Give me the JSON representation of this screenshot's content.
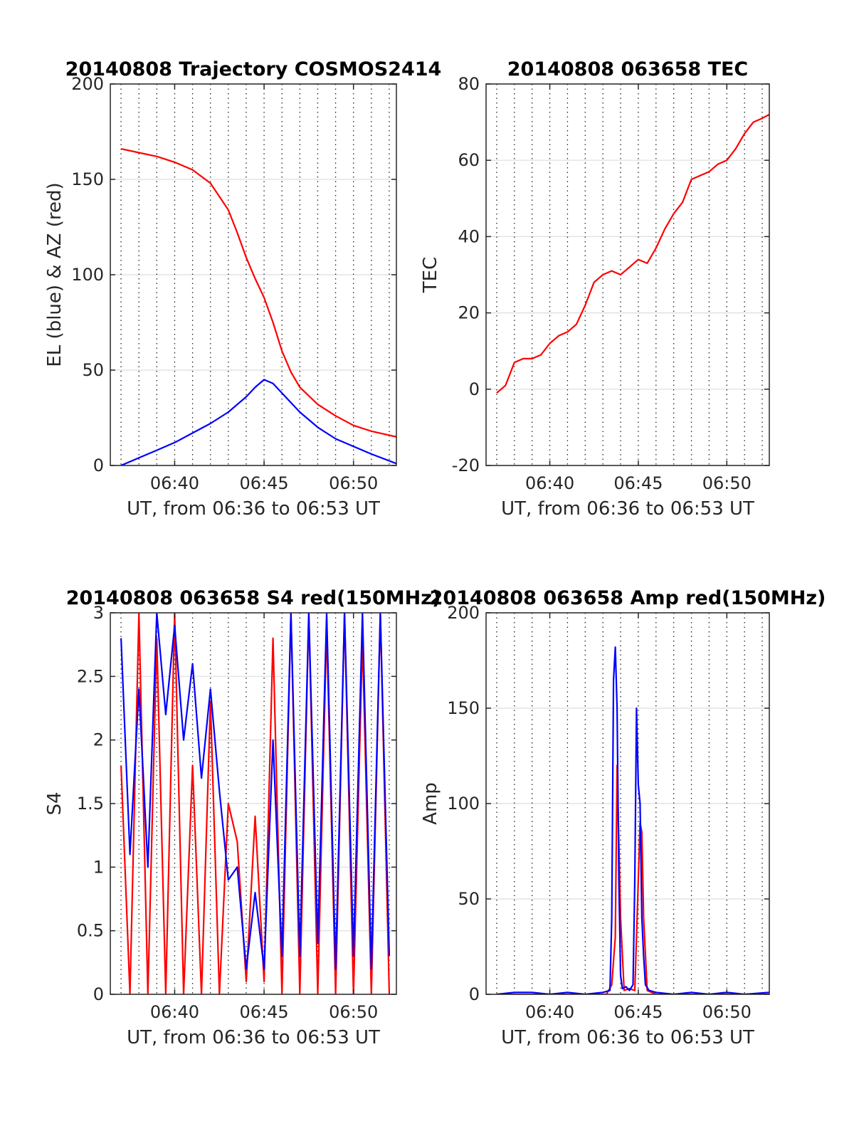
{
  "chart_data": [
    {
      "type": "line",
      "title": "20140808 Trajectory COSMOS2414",
      "xlabel": "UT, from 06:36 to 06:53 UT",
      "ylabel": "EL (blue) & AZ (red)",
      "xlim": [
        6.4,
        22.4
      ],
      "ylim": [
        0,
        200
      ],
      "xticks": [
        {
          "v": 10,
          "label": "06:40"
        },
        {
          "v": 15,
          "label": "06:45"
        },
        {
          "v": 20,
          "label": "06:50"
        }
      ],
      "yticks": [
        {
          "v": 0,
          "label": "0"
        },
        {
          "v": 50,
          "label": "50"
        },
        {
          "v": 100,
          "label": "100"
        },
        {
          "v": 150,
          "label": "150"
        },
        {
          "v": 200,
          "label": "200"
        }
      ],
      "series": [
        {
          "color": "#ff0000",
          "x": [
            7,
            8,
            9,
            10,
            11,
            12,
            13,
            13.5,
            14,
            14.5,
            15,
            15.5,
            16,
            16.5,
            17,
            18,
            19,
            20,
            21,
            22.4
          ],
          "y": [
            166,
            164,
            162,
            159,
            155,
            148,
            134,
            122,
            109,
            98,
            88,
            75,
            60,
            49,
            41,
            32,
            26,
            21,
            18,
            15
          ]
        },
        {
          "color": "#0000ff",
          "x": [
            7,
            8,
            9,
            10,
            11,
            12,
            13,
            14,
            14.5,
            15,
            15.5,
            16,
            17,
            18,
            19,
            20,
            21,
            22.4
          ],
          "y": [
            0,
            4,
            8,
            12,
            17,
            22,
            28,
            36,
            41,
            45,
            43,
            38,
            28,
            20,
            14,
            10,
            6,
            1
          ]
        }
      ],
      "grid": "vertical dotted minor lines, horizontal solid light major lines"
    },
    {
      "type": "line",
      "title": "20140808 063658 TEC",
      "xlabel": "UT, from 06:36 to 06:53 UT",
      "ylabel": "TEC",
      "xlim": [
        6.4,
        22.4
      ],
      "ylim": [
        -20,
        80
      ],
      "xticks": [
        {
          "v": 10,
          "label": "06:40"
        },
        {
          "v": 15,
          "label": "06:45"
        },
        {
          "v": 20,
          "label": "06:50"
        }
      ],
      "yticks": [
        {
          "v": -20,
          "label": "-20"
        },
        {
          "v": 0,
          "label": "0"
        },
        {
          "v": 20,
          "label": "20"
        },
        {
          "v": 40,
          "label": "40"
        },
        {
          "v": 60,
          "label": "60"
        },
        {
          "v": 80,
          "label": "80"
        }
      ],
      "series": [
        {
          "color": "#ff0000",
          "x": [
            7,
            7.5,
            8,
            8.5,
            9,
            9.5,
            10,
            10.5,
            11,
            11.5,
            12,
            12.5,
            13,
            13.5,
            14,
            14.5,
            15,
            15.5,
            16,
            16.5,
            17,
            17.5,
            18,
            18.5,
            19,
            19.5,
            20,
            20.5,
            21,
            21.5,
            22,
            22.4
          ],
          "y": [
            -1,
            1,
            7,
            8,
            8,
            9,
            12,
            14,
            15,
            17,
            22,
            28,
            30,
            31,
            30,
            32,
            34,
            33,
            37,
            42,
            46,
            49,
            55,
            56,
            57,
            59,
            60,
            63,
            67,
            70,
            71,
            72
          ]
        }
      ],
      "grid": "vertical dotted minor lines, horizontal solid light major lines"
    },
    {
      "type": "line",
      "title": "20140808 063658 S4 red(150MHz)",
      "xlabel": "UT, from 06:36 to 06:53 UT",
      "ylabel": "S4",
      "xlim": [
        6.4,
        22.4
      ],
      "ylim": [
        0,
        3
      ],
      "xticks": [
        {
          "v": 10,
          "label": "06:40"
        },
        {
          "v": 15,
          "label": "06:45"
        },
        {
          "v": 20,
          "label": "06:50"
        }
      ],
      "yticks": [
        {
          "v": 0,
          "label": "0"
        },
        {
          "v": 0.5,
          "label": "0.5"
        },
        {
          "v": 1,
          "label": "1"
        },
        {
          "v": 1.5,
          "label": "1.5"
        },
        {
          "v": 2,
          "label": "2"
        },
        {
          "v": 2.5,
          "label": "2.5"
        },
        {
          "v": 3,
          "label": "3"
        }
      ],
      "series": [
        {
          "color": "#ff0000",
          "x": [
            7,
            7.5,
            8,
            8.5,
            9,
            9.5,
            10,
            10.5,
            11,
            11.5,
            12,
            12.5,
            13,
            13.5,
            14,
            14.5,
            15,
            15.5,
            16,
            16.5,
            17,
            17.5,
            18,
            18.5,
            19,
            19.5,
            20,
            20.5,
            21,
            21.5,
            22
          ],
          "y": [
            1.8,
            0,
            3,
            0,
            2.8,
            0,
            3,
            0,
            1.8,
            0,
            2.3,
            0,
            1.5,
            1.2,
            0.1,
            1.4,
            0.1,
            2.8,
            0,
            3,
            0,
            3,
            0,
            2.9,
            0,
            3,
            0,
            2.8,
            0,
            3,
            0
          ]
        },
        {
          "color": "#0000ff",
          "x": [
            7,
            7.5,
            8,
            8.5,
            9,
            9.5,
            10,
            10.5,
            11,
            11.5,
            12,
            12.5,
            13,
            13.5,
            14,
            14.5,
            15,
            15.5,
            16,
            16.5,
            17,
            17.5,
            18,
            18.5,
            19,
            19.5,
            20,
            20.5,
            21,
            21.5,
            22
          ],
          "y": [
            2.8,
            1.1,
            2.4,
            1.0,
            3,
            2.2,
            2.9,
            2.0,
            2.6,
            1.7,
            2.4,
            1.6,
            0.9,
            1.0,
            0.2,
            0.8,
            0.2,
            2.0,
            0.3,
            3,
            0.3,
            3,
            0.4,
            3,
            0.2,
            3,
            0.3,
            3,
            0.2,
            3,
            0.3
          ]
        }
      ],
      "grid": "vertical dotted minor lines, horizontal solid light major lines"
    },
    {
      "type": "line",
      "title": "20140808 063658 Amp red(150MHz)",
      "xlabel": "UT, from 06:36 to 06:53 UT",
      "ylabel": "Amp",
      "xlim": [
        6.4,
        22.4
      ],
      "ylim": [
        0,
        200
      ],
      "xticks": [
        {
          "v": 10,
          "label": "06:40"
        },
        {
          "v": 15,
          "label": "06:45"
        },
        {
          "v": 20,
          "label": "06:50"
        }
      ],
      "yticks": [
        {
          "v": 0,
          "label": "0"
        },
        {
          "v": 50,
          "label": "50"
        },
        {
          "v": 100,
          "label": "100"
        },
        {
          "v": 150,
          "label": "150"
        },
        {
          "v": 200,
          "label": "200"
        }
      ],
      "series": [
        {
          "color": "#ff0000",
          "x": [
            7,
            13.2,
            13.5,
            13.7,
            13.8,
            14.0,
            14.2,
            14.5,
            14.8,
            14.9,
            15.1,
            15.2,
            15.3,
            15.5,
            16,
            22.4
          ],
          "y": [
            0,
            0,
            5,
            30,
            120,
            40,
            2,
            3,
            2,
            30,
            90,
            85,
            40,
            2,
            0,
            0
          ]
        },
        {
          "color": "#0000ff",
          "x": [
            7,
            8,
            9,
            10,
            11,
            12,
            13,
            13.4,
            13.5,
            13.6,
            13.7,
            13.8,
            13.9,
            14.0,
            14.1,
            14.3,
            14.5,
            14.7,
            14.8,
            14.9,
            15.0,
            15.1,
            15.2,
            15.3,
            15.4,
            15.6,
            16,
            17,
            18,
            19,
            20,
            21,
            22.4
          ],
          "y": [
            0,
            1,
            1,
            0,
            1,
            0,
            1,
            2,
            40,
            165,
            182,
            150,
            60,
            10,
            3,
            4,
            2,
            5,
            60,
            150,
            110,
            100,
            40,
            20,
            5,
            2,
            1,
            0,
            1,
            0,
            1,
            0,
            1
          ]
        }
      ],
      "grid": "vertical dotted minor lines, horizontal solid light major lines"
    }
  ]
}
